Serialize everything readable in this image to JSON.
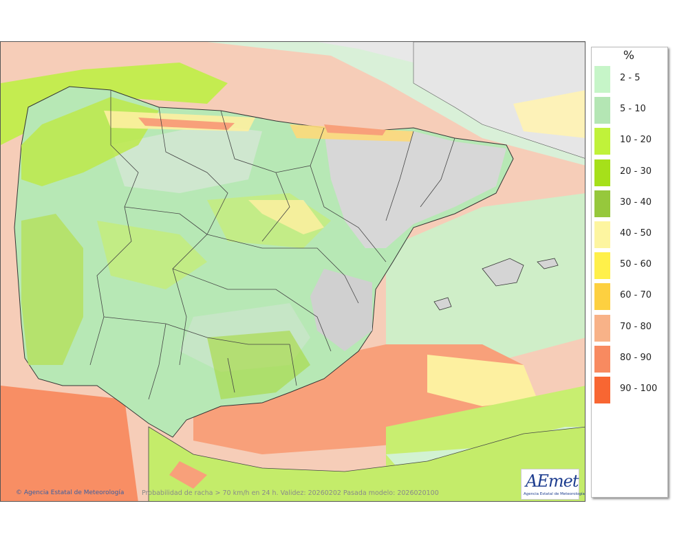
{
  "map": {
    "copyright": "© Agencia Estatal de Meteorología",
    "info": "Probabilidad de racha > 70 km/h en 24 h. Validez: 20260202 Pasada modelo: 2026020100",
    "logo": {
      "word": "AEmet",
      "subtitle": "Agencia Estatal de Meteorología"
    }
  },
  "legend": {
    "unit": "%",
    "items": [
      {
        "label": "2 - 5",
        "color": "#c6f5c8"
      },
      {
        "label": "5 - 10",
        "color": "#b4e6b4"
      },
      {
        "label": "10 - 20",
        "color": "#c0f23a"
      },
      {
        "label": "20 - 30",
        "color": "#a6e01a"
      },
      {
        "label": "30 - 40",
        "color": "#96c83c"
      },
      {
        "label": "40 - 50",
        "color": "#fdf5a0"
      },
      {
        "label": "50 - 60",
        "color": "#fff04a"
      },
      {
        "label": "60 - 70",
        "color": "#fdd040"
      },
      {
        "label": "70 - 80",
        "color": "#f8b288"
      },
      {
        "label": "80 - 90",
        "color": "#f88a60"
      },
      {
        "label": "90 - 100",
        "color": "#f86632"
      }
    ]
  }
}
